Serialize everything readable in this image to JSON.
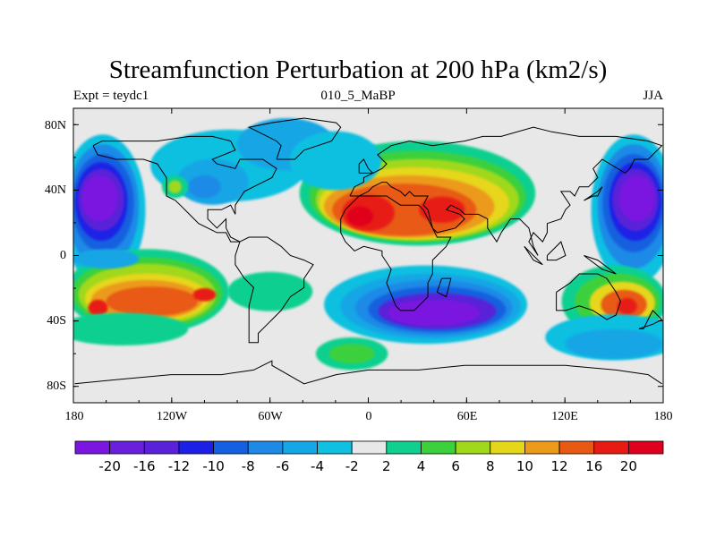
{
  "title": "Streamfunction Perturbation at 200 hPa (km2/s)",
  "subtitle_left": "Expt = teydc1",
  "subtitle_center": "010_5_MaBP",
  "subtitle_right": "JJA",
  "map": {
    "projection": "cylindrical-equidistant",
    "lon_range": [
      -180,
      180
    ],
    "lat_range": [
      -90,
      90
    ],
    "x_ticks": [
      "180",
      "120W",
      "60W",
      "0",
      "60E",
      "120E",
      "180"
    ],
    "y_ticks": [
      "80N",
      "40N",
      "0",
      "40S",
      "80S"
    ],
    "field": "streamfunction perturbation",
    "level": "200 hPa",
    "units": "km2/s",
    "features": [
      {
        "name": "N Pacific low",
        "lon": -160,
        "lat": 35,
        "value": -22
      },
      {
        "name": "NE Asia low",
        "lon": 160,
        "lat": 32,
        "value": -22
      },
      {
        "name": "S Atlantic-Indian low",
        "lon": 40,
        "lat": -35,
        "value": -21
      },
      {
        "name": "N Africa-Asia high",
        "lon": 0,
        "lat": 30,
        "value": 22
      },
      {
        "name": "Middle East high",
        "lon": 55,
        "lat": 30,
        "value": 17
      },
      {
        "name": "S Pacific high",
        "lon": -110,
        "lat": -30,
        "value": 16
      },
      {
        "name": "Australia high",
        "lon": 150,
        "lat": -30,
        "value": 16
      }
    ]
  },
  "colorbar": {
    "levels": [
      "-20",
      "-16",
      "-12",
      "-10",
      "-8",
      "-6",
      "-4",
      "-2",
      "2",
      "4",
      "6",
      "8",
      "10",
      "12",
      "16",
      "20"
    ],
    "colors": [
      "#7a16e0",
      "#6a1fdc",
      "#5a22d8",
      "#1c20e6",
      "#1560e0",
      "#1f8ae6",
      "#14a6e6",
      "#10c0e0",
      "#e8e8e8",
      "#10d090",
      "#3cd03c",
      "#a0d81c",
      "#e6d61a",
      "#ec9a1a",
      "#e85a14",
      "#e81a14",
      "#e0001e"
    ]
  }
}
